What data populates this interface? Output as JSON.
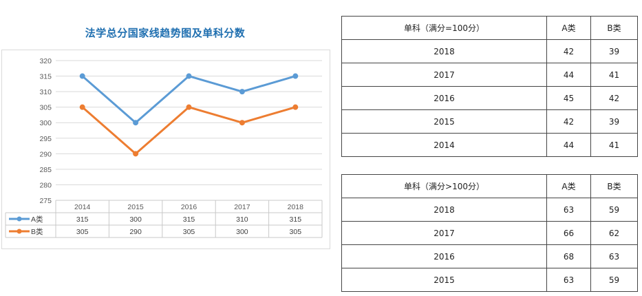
{
  "title": "法学总分国家线趋势图及单科分数",
  "chart_data": {
    "type": "line",
    "categories": [
      "2014",
      "2015",
      "2016",
      "2017",
      "2018"
    ],
    "series": [
      {
        "name": "A类",
        "values": [
          315,
          300,
          315,
          310,
          315
        ],
        "color": "#5b9bd5"
      },
      {
        "name": "B类",
        "values": [
          305,
          290,
          305,
          300,
          305
        ],
        "color": "#ed7d31"
      }
    ],
    "ylim": [
      275,
      320
    ],
    "yticks": [
      275,
      280,
      285,
      290,
      295,
      300,
      305,
      310,
      315,
      320
    ],
    "grid": true,
    "legend": "data-table-below"
  },
  "table1": {
    "headers": [
      "单科（满分=100分）",
      "A类",
      "B类"
    ],
    "rows": [
      [
        "2018",
        "42",
        "39"
      ],
      [
        "2017",
        "44",
        "41"
      ],
      [
        "2016",
        "45",
        "42"
      ],
      [
        "2015",
        "42",
        "39"
      ],
      [
        "2014",
        "44",
        "41"
      ]
    ]
  },
  "table2": {
    "headers": [
      "单科（满分>100分）",
      "A类",
      "B类"
    ],
    "rows": [
      [
        "2018",
        "63",
        "59"
      ],
      [
        "2017",
        "66",
        "62"
      ],
      [
        "2016",
        "68",
        "63"
      ],
      [
        "2015",
        "63",
        "59"
      ]
    ]
  }
}
